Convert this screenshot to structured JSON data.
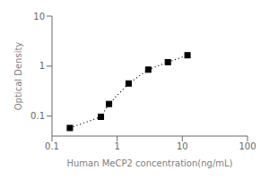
{
  "chart_data": {
    "type": "line",
    "xlabel": "Human MeCP2 concentration(ng/mL)",
    "ylabel": "Optical Density",
    "x": [
      0.188,
      0.563,
      0.75,
      1.5,
      3.0,
      6.0,
      12.0
    ],
    "values": [
      0.058,
      0.097,
      0.175,
      0.45,
      0.85,
      1.2,
      1.65
    ],
    "xlim": [
      0.1,
      100
    ],
    "ylim": [
      0.04,
      10
    ],
    "xticks": [
      0.1,
      1,
      10,
      100
    ],
    "yticks": [
      0.1,
      1,
      10
    ],
    "log": true,
    "grid": false,
    "color": "black",
    "marker": "square",
    "line_style": "dotted"
  }
}
